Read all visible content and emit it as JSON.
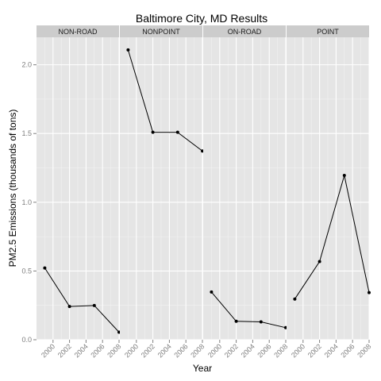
{
  "chart_data": {
    "type": "line",
    "title": "Baltimore City, MD Results",
    "xlabel": "Year",
    "ylabel": "PM2.5 Emissions (thousands of tons)",
    "xlim": [
      1998,
      2008
    ],
    "ylim": [
      0,
      2.2
    ],
    "x_ticks": [
      2000,
      2002,
      2004,
      2006,
      2008
    ],
    "y_ticks": [
      0.0,
      0.5,
      1.0,
      1.5,
      2.0
    ],
    "y_tick_labels": [
      "0.0",
      "0.5",
      "1.0",
      "1.5",
      "2.0"
    ],
    "grid": true,
    "facets": [
      {
        "name": "NON-ROAD",
        "x": [
          1999,
          2002,
          2005,
          2008
        ],
        "y": [
          0.522,
          0.242,
          0.249,
          0.055
        ]
      },
      {
        "name": "NONPOINT",
        "x": [
          1999,
          2002,
          2005,
          2008
        ],
        "y": [
          2.108,
          1.509,
          1.509,
          1.373
        ]
      },
      {
        "name": "ON-ROAD",
        "x": [
          1999,
          2002,
          2005,
          2008
        ],
        "y": [
          0.347,
          0.134,
          0.13,
          0.088
        ]
      },
      {
        "name": "POINT",
        "x": [
          1999,
          2002,
          2005,
          2008
        ],
        "y": [
          0.296,
          0.569,
          1.195,
          0.343
        ]
      }
    ]
  }
}
